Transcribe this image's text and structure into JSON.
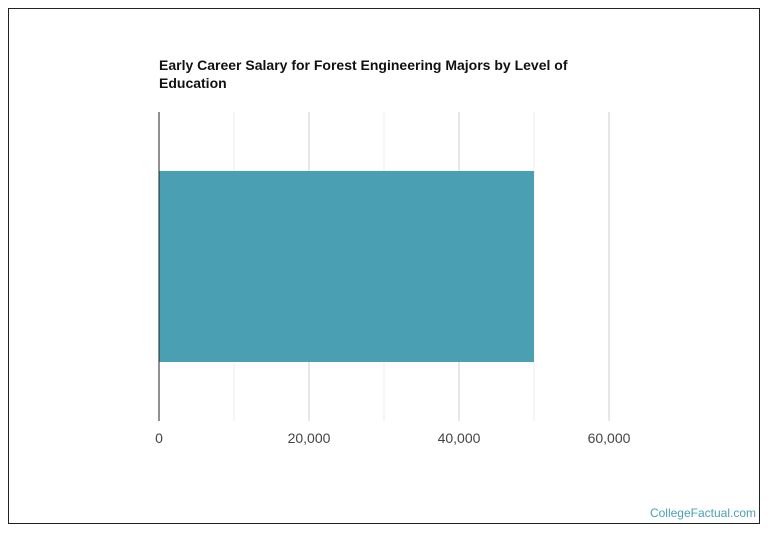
{
  "chart_data": {
    "type": "bar",
    "orientation": "horizontal",
    "title": "Early Career Salary for Forest Engineering Majors by Level of Education",
    "categories": [
      ""
    ],
    "values": [
      50000
    ],
    "xlabel": "",
    "ylabel": "",
    "xlim": [
      0,
      60000
    ],
    "x_ticks": [
      0,
      20000,
      40000,
      60000
    ],
    "x_tick_labels": [
      "0",
      "20,000",
      "40,000",
      "60,000"
    ],
    "minor_gridlines": [
      10000,
      30000,
      50000
    ],
    "grid": true,
    "bar_color": "#4aa0b2"
  },
  "credit": "CollegeFactual.com"
}
